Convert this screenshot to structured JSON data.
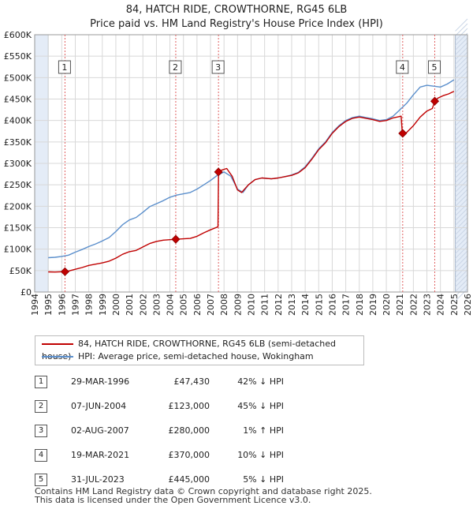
{
  "title_line1": "84, HATCH RIDE, CROWTHORNE, RG45 6LB",
  "title_line2": "Price paid vs. HM Land Registry's House Price Index (HPI)",
  "colors": {
    "property": "#c00000",
    "hpi": "#5b8fcc",
    "shade": "#e4ecf7",
    "grid": "#d8d8d8",
    "marker_line": "#e06060"
  },
  "chart_data": {
    "type": "line",
    "xlim": [
      1994,
      2026
    ],
    "ylim": [
      0,
      600000
    ],
    "x_ticks": [
      1994,
      1995,
      1996,
      1997,
      1998,
      1999,
      2000,
      2001,
      2002,
      2003,
      2004,
      2005,
      2006,
      2007,
      2008,
      2009,
      2010,
      2011,
      2012,
      2013,
      2014,
      2015,
      2016,
      2017,
      2018,
      2019,
      2020,
      2021,
      2022,
      2023,
      2024,
      2025,
      2026
    ],
    "y_ticks": [
      0,
      50000,
      100000,
      150000,
      200000,
      250000,
      300000,
      350000,
      400000,
      450000,
      500000,
      550000,
      600000
    ],
    "y_tick_labels": [
      "£0",
      "£50K",
      "£100K",
      "£150K",
      "£200K",
      "£250K",
      "£300K",
      "£350K",
      "£400K",
      "£450K",
      "£500K",
      "£550K",
      "£600K"
    ],
    "data_range_shaded": [
      [
        1994,
        1995.0
      ],
      [
        2025.1,
        2026
      ]
    ],
    "series": [
      {
        "name": "84, HATCH RIDE, CROWTHORNE, RG45 6LB (semi-detached house)",
        "color": "#c00000",
        "points": [
          [
            1995.0,
            47000
          ],
          [
            1995.5,
            46500
          ],
          [
            1996.24,
            47430
          ],
          [
            1996.5,
            49000
          ],
          [
            1997.0,
            53000
          ],
          [
            1997.5,
            57000
          ],
          [
            1998.0,
            62000
          ],
          [
            1998.5,
            65000
          ],
          [
            1999.0,
            68000
          ],
          [
            1999.5,
            72000
          ],
          [
            2000.0,
            79000
          ],
          [
            2000.5,
            88000
          ],
          [
            2001.0,
            94000
          ],
          [
            2001.5,
            97000
          ],
          [
            2002.0,
            105000
          ],
          [
            2002.5,
            113000
          ],
          [
            2003.0,
            118000
          ],
          [
            2003.5,
            121000
          ],
          [
            2004.0,
            122000
          ],
          [
            2004.43,
            123000
          ],
          [
            2005.0,
            124000
          ],
          [
            2005.5,
            125000
          ],
          [
            2006.0,
            130000
          ],
          [
            2006.5,
            138000
          ],
          [
            2007.0,
            145000
          ],
          [
            2007.55,
            152000
          ],
          [
            2007.59,
            280000
          ],
          [
            2007.8,
            284000
          ],
          [
            2008.2,
            288000
          ],
          [
            2008.6,
            270000
          ],
          [
            2009.0,
            238000
          ],
          [
            2009.3,
            232000
          ],
          [
            2009.8,
            250000
          ],
          [
            2010.3,
            262000
          ],
          [
            2010.8,
            266000
          ],
          [
            2011.5,
            264000
          ],
          [
            2012.0,
            266000
          ],
          [
            2012.5,
            269000
          ],
          [
            2013.0,
            272000
          ],
          [
            2013.5,
            278000
          ],
          [
            2014.0,
            290000
          ],
          [
            2014.5,
            310000
          ],
          [
            2015.0,
            332000
          ],
          [
            2015.5,
            348000
          ],
          [
            2016.0,
            370000
          ],
          [
            2016.5,
            386000
          ],
          [
            2017.0,
            398000
          ],
          [
            2017.5,
            405000
          ],
          [
            2018.0,
            408000
          ],
          [
            2018.5,
            405000
          ],
          [
            2019.0,
            402000
          ],
          [
            2019.5,
            398000
          ],
          [
            2020.0,
            400000
          ],
          [
            2020.5,
            406000
          ],
          [
            2021.1,
            410000
          ],
          [
            2021.18,
            370000
          ],
          [
            2021.5,
            372000
          ],
          [
            2022.0,
            388000
          ],
          [
            2022.5,
            408000
          ],
          [
            2023.0,
            422000
          ],
          [
            2023.4,
            428000
          ],
          [
            2023.58,
            445000
          ],
          [
            2023.8,
            452000
          ],
          [
            2024.2,
            458000
          ],
          [
            2024.6,
            462000
          ],
          [
            2025.0,
            468000
          ]
        ]
      },
      {
        "name": "HPI: Average price, semi-detached house, Wokingham",
        "color": "#5b8fcc",
        "points": [
          [
            1995.0,
            80000
          ],
          [
            1995.5,
            81000
          ],
          [
            1996.0,
            83000
          ],
          [
            1996.5,
            86000
          ],
          [
            1997.0,
            93000
          ],
          [
            1997.5,
            99000
          ],
          [
            1998.0,
            106000
          ],
          [
            1998.5,
            112000
          ],
          [
            1999.0,
            119000
          ],
          [
            1999.5,
            127000
          ],
          [
            2000.0,
            141000
          ],
          [
            2000.5,
            157000
          ],
          [
            2001.0,
            168000
          ],
          [
            2001.5,
            174000
          ],
          [
            2002.0,
            186000
          ],
          [
            2002.5,
            199000
          ],
          [
            2003.0,
            206000
          ],
          [
            2003.5,
            213000
          ],
          [
            2004.0,
            221000
          ],
          [
            2004.5,
            226000
          ],
          [
            2005.0,
            229000
          ],
          [
            2005.5,
            232000
          ],
          [
            2006.0,
            240000
          ],
          [
            2006.5,
            250000
          ],
          [
            2007.0,
            260000
          ],
          [
            2007.5,
            272000
          ],
          [
            2008.0,
            280000
          ],
          [
            2008.5,
            270000
          ],
          [
            2009.0,
            240000
          ],
          [
            2009.4,
            232000
          ],
          [
            2009.8,
            250000
          ],
          [
            2010.3,
            262000
          ],
          [
            2010.8,
            266000
          ],
          [
            2011.5,
            264000
          ],
          [
            2012.0,
            266000
          ],
          [
            2012.5,
            269000
          ],
          [
            2013.0,
            273000
          ],
          [
            2013.5,
            279000
          ],
          [
            2014.0,
            292000
          ],
          [
            2014.5,
            312000
          ],
          [
            2015.0,
            334000
          ],
          [
            2015.5,
            350000
          ],
          [
            2016.0,
            372000
          ],
          [
            2016.5,
            388000
          ],
          [
            2017.0,
            400000
          ],
          [
            2017.5,
            407000
          ],
          [
            2018.0,
            410000
          ],
          [
            2018.5,
            407000
          ],
          [
            2019.0,
            404000
          ],
          [
            2019.5,
            400000
          ],
          [
            2020.0,
            402000
          ],
          [
            2020.5,
            410000
          ],
          [
            2021.0,
            425000
          ],
          [
            2021.5,
            440000
          ],
          [
            2022.0,
            460000
          ],
          [
            2022.5,
            478000
          ],
          [
            2023.0,
            482000
          ],
          [
            2023.5,
            480000
          ],
          [
            2024.0,
            478000
          ],
          [
            2024.5,
            485000
          ],
          [
            2025.0,
            495000
          ]
        ]
      }
    ],
    "sales": [
      {
        "label": "1",
        "x": 1996.24,
        "price": 47430
      },
      {
        "label": "2",
        "x": 2004.43,
        "price": 123000
      },
      {
        "label": "3",
        "x": 2007.59,
        "price": 280000
      },
      {
        "label": "4",
        "x": 2021.21,
        "price": 370000
      },
      {
        "label": "5",
        "x": 2023.58,
        "price": 445000
      }
    ]
  },
  "legend": {
    "property_label": "84, HATCH RIDE, CROWTHORNE, RG45 6LB (semi-detached house)",
    "hpi_label": "HPI: Average price, semi-detached house, Wokingham"
  },
  "sales_table": [
    {
      "num": "1",
      "date": "29-MAR-1996",
      "price": "£47,430",
      "hpi": "42% ↓ HPI"
    },
    {
      "num": "2",
      "date": "07-JUN-2004",
      "price": "£123,000",
      "hpi": "45% ↓ HPI"
    },
    {
      "num": "3",
      "date": "02-AUG-2007",
      "price": "£280,000",
      "hpi": "1% ↑ HPI"
    },
    {
      "num": "4",
      "date": "19-MAR-2021",
      "price": "£370,000",
      "hpi": "10% ↓ HPI"
    },
    {
      "num": "5",
      "date": "31-JUL-2023",
      "price": "£445,000",
      "hpi": "5% ↓ HPI"
    }
  ],
  "footer_line1": "Contains HM Land Registry data © Crown copyright and database right 2025.",
  "footer_line2": "This data is licensed under the Open Government Licence v3.0."
}
